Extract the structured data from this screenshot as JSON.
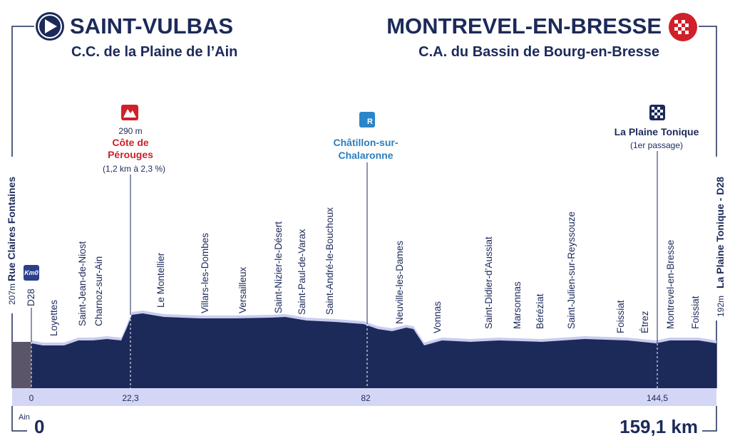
{
  "header": {
    "start": {
      "town": "SAINT-VULBAS",
      "community": "C.C. de la Plaine de l’Ain"
    },
    "finish": {
      "town": "MONTREVEL-EN-BRESSE",
      "community": "C.A. du Bassin de Bourg-en-Bresse"
    }
  },
  "start_point": {
    "street": "Rue Claires Fontaines",
    "altitude": "207m",
    "road": "D28",
    "badge": "Km0",
    "department": "Ain",
    "km": "0"
  },
  "finish_point": {
    "street": "La Plaine Tonique - D28",
    "altitude": "192m",
    "distance": "159,1 km"
  },
  "climb": {
    "altitude": "290 m",
    "name_line1": "Côte de",
    "name_line2": "Pérouges",
    "details": "(1,2 km à 2,3 %)",
    "km": "22,3"
  },
  "sprint": {
    "name_line1": "Châtillon-sur-",
    "name_line2": "Chalaronne",
    "km": "82"
  },
  "finish_pass": {
    "name": "La Plaine Tonique",
    "note": "(1er passage)",
    "km": "144,5"
  },
  "places": [
    "Loyettes",
    "Saint-Jean-de-Niost",
    "Charnoz-sur-Ain",
    "Le Montellier",
    "Villars-les-Dombes",
    "Versailleux",
    "Saint-Nizier-le-Désert",
    "Saint-Paul-de-Varax",
    "Saint-André-le-Bouchoux",
    "Neuville-les-Dames",
    "Vonnas",
    "Saint-Didier-d’Aussiat",
    "Marsonnas",
    "Béréziat",
    "Saint-Julien-sur-Reyssouze",
    "Foissiat",
    "Étrez",
    "Montrevel-en-Bresse",
    "Foissiat"
  ]
}
